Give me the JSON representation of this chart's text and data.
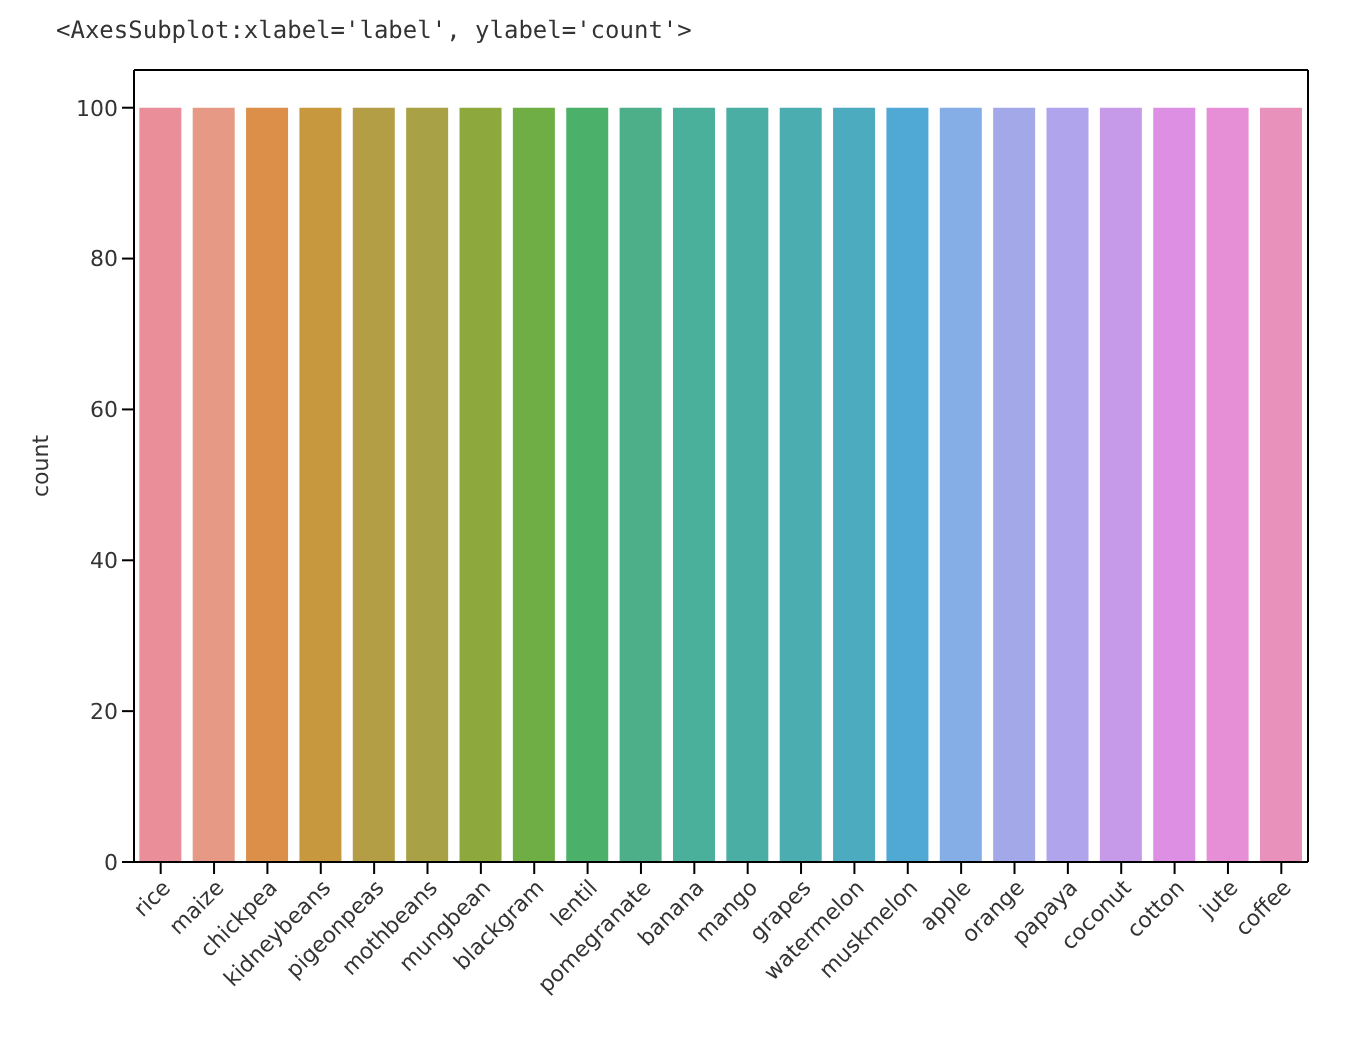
{
  "chart_data": {
    "type": "bar",
    "annotations": [
      "<AxesSubplot:xlabel='label', ylabel='count'>"
    ],
    "ylabel": "count",
    "categories": [
      "rice",
      "maize",
      "chickpea",
      "kidneybeans",
      "pigeonpeas",
      "mothbeans",
      "mungbean",
      "blackgram",
      "lentil",
      "pomegranate",
      "banana",
      "mango",
      "grapes",
      "watermelon",
      "muskmelon",
      "apple",
      "orange",
      "papaya",
      "coconut",
      "cotton",
      "jute",
      "coffee"
    ],
    "values": [
      100,
      100,
      100,
      100,
      100,
      100,
      100,
      100,
      100,
      100,
      100,
      100,
      100,
      100,
      100,
      100,
      100,
      100,
      100,
      100,
      100,
      100
    ],
    "colors": [
      "#ea8f99",
      "#e69a85",
      "#dc8f49",
      "#c8983f",
      "#b39d45",
      "#a8a145",
      "#8da83c",
      "#6fae45",
      "#4bb06a",
      "#4daf8a",
      "#4aaf9b",
      "#4aaea5",
      "#4badb0",
      "#4cabbe",
      "#50a8d5",
      "#86aee6",
      "#a3a8e8",
      "#b0a5ec",
      "#c69ae9",
      "#dc8fe3",
      "#e68fd6",
      "#e891bb"
    ],
    "ylim": [
      0,
      105
    ],
    "yticks": [
      0,
      20,
      40,
      60,
      80,
      100
    ]
  }
}
